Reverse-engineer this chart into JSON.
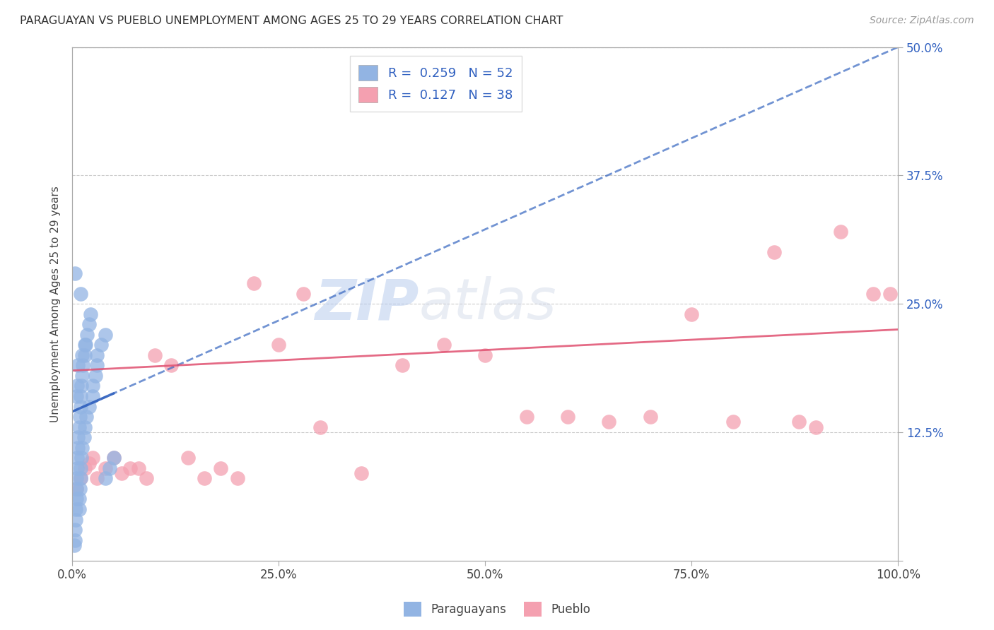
{
  "title": "PARAGUAYAN VS PUEBLO UNEMPLOYMENT AMONG AGES 25 TO 29 YEARS CORRELATION CHART",
  "source": "Source: ZipAtlas.com",
  "ylabel": "Unemployment Among Ages 25 to 29 years",
  "xlim": [
    0,
    100
  ],
  "ylim": [
    0,
    50
  ],
  "xticks": [
    0,
    25,
    50,
    75,
    100
  ],
  "xticklabels": [
    "0.0%",
    "25.0%",
    "50.0%",
    "75.0%",
    "100.0%"
  ],
  "yticks": [
    0,
    12.5,
    25,
    37.5,
    50
  ],
  "yticklabels": [
    "",
    "12.5%",
    "25.0%",
    "37.5%",
    "50.0%"
  ],
  "legend_R_blue": "0.259",
  "legend_N_blue": "52",
  "legend_R_pink": "0.127",
  "legend_N_pink": "38",
  "legend_label_blue": "Paraguayans",
  "legend_label_pink": "Pueblo",
  "watermark_zip": "ZIP",
  "watermark_atlas": "atlas",
  "blue_color": "#92b4e3",
  "pink_color": "#f4a0b0",
  "trendline_blue_color": "#3565c0",
  "trendline_pink_color": "#e05070",
  "background_color": "#ffffff",
  "blue_scatter_x": [
    0.2,
    0.3,
    0.3,
    0.4,
    0.4,
    0.5,
    0.5,
    0.5,
    0.6,
    0.6,
    0.7,
    0.7,
    0.8,
    0.8,
    0.8,
    0.9,
    0.9,
    1.0,
    1.0,
    1.0,
    1.0,
    1.1,
    1.1,
    1.2,
    1.2,
    1.3,
    1.4,
    1.5,
    1.5,
    1.6,
    1.7,
    1.8,
    2.0,
    2.0,
    2.2,
    2.5,
    2.5,
    2.8,
    3.0,
    3.0,
    3.5,
    4.0,
    4.0,
    4.5,
    5.0,
    0.3,
    0.5,
    0.6,
    0.7,
    1.0,
    1.2,
    1.5
  ],
  "blue_scatter_y": [
    1.5,
    2.0,
    3.0,
    4.0,
    5.0,
    6.0,
    7.0,
    8.0,
    9.0,
    10.0,
    11.0,
    12.0,
    5.0,
    6.0,
    13.0,
    7.0,
    14.0,
    8.0,
    15.0,
    9.0,
    16.0,
    10.0,
    17.0,
    11.0,
    18.0,
    19.0,
    12.0,
    20.0,
    13.0,
    21.0,
    14.0,
    22.0,
    23.0,
    15.0,
    24.0,
    16.0,
    17.0,
    18.0,
    19.0,
    20.0,
    21.0,
    22.0,
    8.0,
    9.0,
    10.0,
    28.0,
    16.0,
    17.0,
    19.0,
    26.0,
    20.0,
    21.0
  ],
  "pink_scatter_x": [
    0.5,
    1.0,
    1.5,
    2.0,
    2.5,
    3.0,
    4.0,
    5.0,
    6.0,
    7.0,
    8.0,
    9.0,
    10.0,
    12.0,
    14.0,
    16.0,
    18.0,
    20.0,
    22.0,
    25.0,
    28.0,
    30.0,
    35.0,
    40.0,
    45.0,
    50.0,
    55.0,
    60.0,
    65.0,
    70.0,
    75.0,
    80.0,
    85.0,
    88.0,
    90.0,
    93.0,
    97.0,
    99.0
  ],
  "pink_scatter_y": [
    7.0,
    8.0,
    9.0,
    9.5,
    10.0,
    8.0,
    9.0,
    10.0,
    8.5,
    9.0,
    9.0,
    8.0,
    20.0,
    19.0,
    10.0,
    8.0,
    9.0,
    8.0,
    27.0,
    21.0,
    26.0,
    13.0,
    8.5,
    19.0,
    21.0,
    20.0,
    14.0,
    14.0,
    13.5,
    14.0,
    24.0,
    13.5,
    30.0,
    13.5,
    13.0,
    32.0,
    26.0,
    26.0
  ],
  "blue_trendline_x0": 0,
  "blue_trendline_y0": 14.5,
  "blue_trendline_x1": 100,
  "blue_trendline_y1": 50,
  "pink_trendline_x0": 0,
  "pink_trendline_y0": 18.5,
  "pink_trendline_x1": 100,
  "pink_trendline_y1": 22.5
}
